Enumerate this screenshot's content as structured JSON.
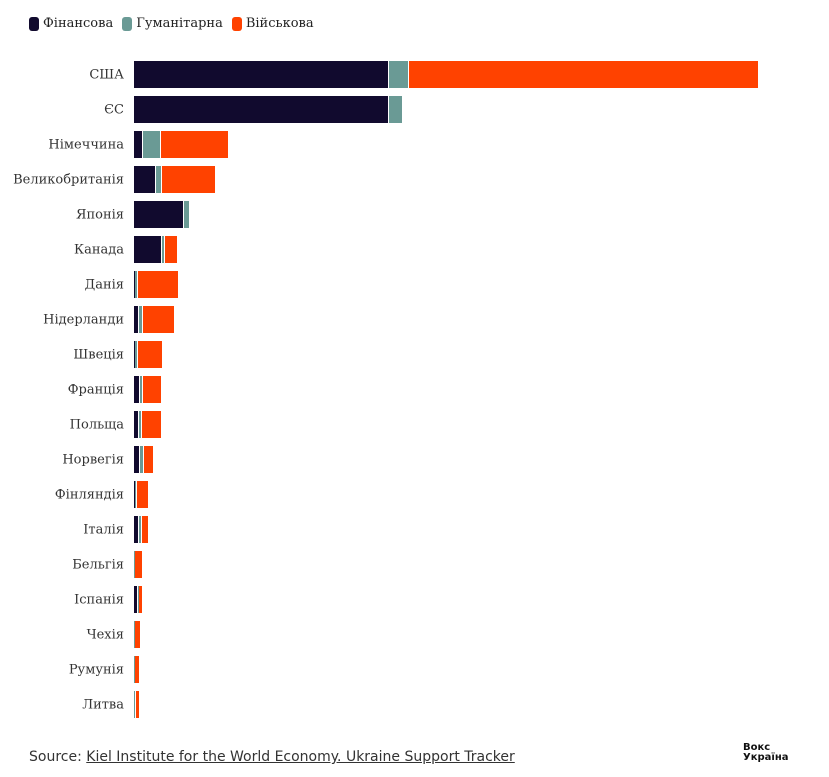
{
  "chart_data": {
    "type": "bar",
    "orientation": "horizontal",
    "stacked": true,
    "legend_position": "top-left",
    "grid": false,
    "categories": [
      "США",
      "ЄС",
      "Німеччина",
      "Великобританія",
      "Японія",
      "Канада",
      "Данія",
      "Нідерланди",
      "Швеція",
      "Франція",
      "Польща",
      "Норвегія",
      "Фінляндія",
      "Італія",
      "Бельгія",
      "Іспанія",
      "Чехія",
      "Румунія",
      "Литва"
    ],
    "series": [
      {
        "name": "Фінансова",
        "color": "#110a2e",
        "values": [
          25.5,
          25.5,
          0.9,
          2.2,
          5.0,
          2.8,
          0.1,
          0.5,
          0.1,
          0.6,
          0.5,
          0.6,
          0.1,
          0.5,
          0.0,
          0.4,
          0.0,
          0.0,
          0.0
        ]
      },
      {
        "name": "Гуманітарна",
        "color": "#6a9a95",
        "values": [
          2.0,
          1.4,
          1.8,
          0.6,
          0.6,
          0.3,
          0.3,
          0.4,
          0.3,
          0.3,
          0.3,
          0.4,
          0.2,
          0.3,
          0.1,
          0.1,
          0.1,
          0.1,
          0.2
        ]
      },
      {
        "name": "Військова",
        "color": "#ff4200",
        "values": [
          35.0,
          0.0,
          6.8,
          5.4,
          0.0,
          1.3,
          4.1,
          3.2,
          2.5,
          1.9,
          2.0,
          1.0,
          1.2,
          0.7,
          0.8,
          0.4,
          0.6,
          0.5,
          0.4
        ]
      }
    ]
  },
  "source": {
    "prefix": "Source: ",
    "link_text": "Kiel Institute for the World Economy. Ukraine Support Tracker"
  },
  "logo": {
    "line1": "Вокс",
    "line2": "Україна"
  }
}
